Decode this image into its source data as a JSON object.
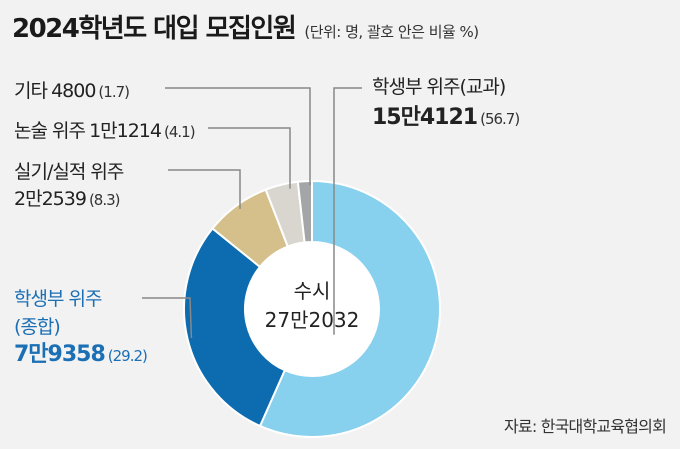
{
  "title": "2024학년도 대입 모집인원",
  "subtitle": "(단위: 명, 괄호 안은 비율 %)",
  "source": "자료: 한국대학교육협의회",
  "chart_data": {
    "type": "pie",
    "center_label": "수시",
    "center_value": "27만2032",
    "slices": [
      {
        "name": "학생부 위주(교과)",
        "value": 154121,
        "value_label": "15만4121",
        "percent": 56.7,
        "percent_label": "(56.7)",
        "color": "#87d0ee"
      },
      {
        "name": "학생부 위주(종합)",
        "value": 79358,
        "value_label": "7만9358",
        "percent": 29.2,
        "percent_label": "(29.2)",
        "color": "#0d6cb0"
      },
      {
        "name": "실기/실적 위주",
        "value": 22539,
        "value_label": "2만2539",
        "percent": 8.3,
        "percent_label": "(8.3)",
        "color": "#d5bf8a"
      },
      {
        "name": "논술 위주",
        "value": 11214,
        "value_label": "1만1214",
        "percent": 4.1,
        "percent_label": "(4.1)",
        "color": "#d9d6d0"
      },
      {
        "name": "기타",
        "value": 4800,
        "value_label": "4800",
        "percent": 1.7,
        "percent_label": "(1.7)",
        "color": "#a4a5a7"
      }
    ]
  }
}
